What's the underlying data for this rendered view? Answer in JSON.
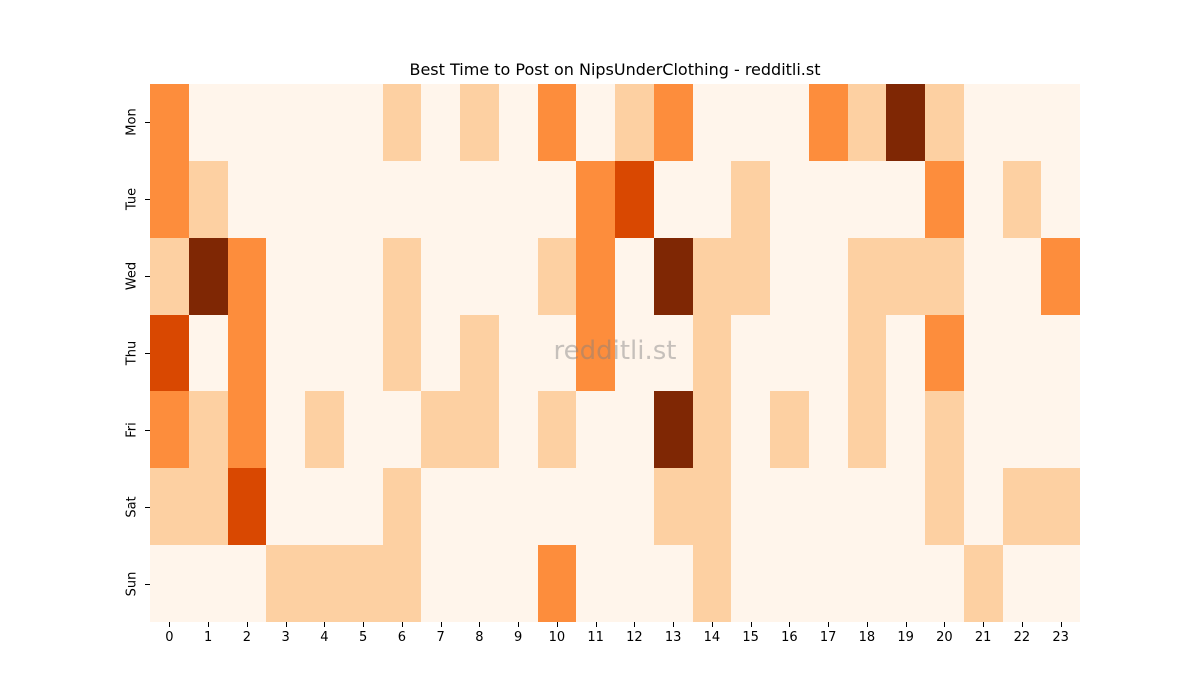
{
  "chart_data": {
    "type": "heatmap",
    "title": "Best Time to Post on NipsUnderClothing - redditli.st",
    "xlabel": "",
    "ylabel": "",
    "x": [
      "0",
      "1",
      "2",
      "3",
      "4",
      "5",
      "6",
      "7",
      "8",
      "9",
      "10",
      "11",
      "12",
      "13",
      "14",
      "15",
      "16",
      "17",
      "18",
      "19",
      "20",
      "21",
      "22",
      "23"
    ],
    "y": [
      "Mon",
      "Tue",
      "Wed",
      "Thu",
      "Fri",
      "Sat",
      "Sun"
    ],
    "values": [
      [
        2,
        0,
        0,
        0,
        0,
        0,
        1,
        0,
        1,
        0,
        2,
        0,
        1,
        2,
        0,
        0,
        0,
        2,
        1,
        4,
        1,
        0,
        0,
        0
      ],
      [
        2,
        1,
        0,
        0,
        0,
        0,
        0,
        0,
        0,
        0,
        0,
        2,
        3,
        0,
        0,
        1,
        0,
        0,
        0,
        0,
        2,
        0,
        1,
        0
      ],
      [
        1,
        4,
        2,
        0,
        0,
        0,
        1,
        0,
        0,
        0,
        1,
        2,
        0,
        4,
        1,
        1,
        0,
        0,
        1,
        1,
        1,
        0,
        0,
        2
      ],
      [
        3,
        0,
        2,
        0,
        0,
        0,
        1,
        0,
        1,
        0,
        0,
        2,
        0,
        0,
        1,
        0,
        0,
        0,
        1,
        0,
        2,
        0,
        0,
        0
      ],
      [
        2,
        1,
        2,
        0,
        1,
        0,
        0,
        1,
        1,
        0,
        1,
        0,
        0,
        4,
        1,
        0,
        1,
        0,
        1,
        0,
        1,
        0,
        0,
        0
      ],
      [
        1,
        1,
        3,
        0,
        0,
        0,
        1,
        0,
        0,
        0,
        0,
        0,
        0,
        1,
        1,
        0,
        0,
        0,
        0,
        0,
        1,
        0,
        1,
        1
      ],
      [
        0,
        0,
        0,
        1,
        1,
        1,
        1,
        0,
        0,
        0,
        2,
        0,
        0,
        0,
        1,
        0,
        0,
        0,
        0,
        0,
        0,
        1,
        0,
        0
      ]
    ],
    "colormap": "Oranges",
    "levels": [
      0,
      1,
      2,
      3,
      4
    ],
    "level_colors": [
      "#fff5eb",
      "#fdd0a2",
      "#fd8d3c",
      "#d94801",
      "#7f2704"
    ],
    "colorbar": false,
    "grid": false
  },
  "watermark": "redditli.st"
}
